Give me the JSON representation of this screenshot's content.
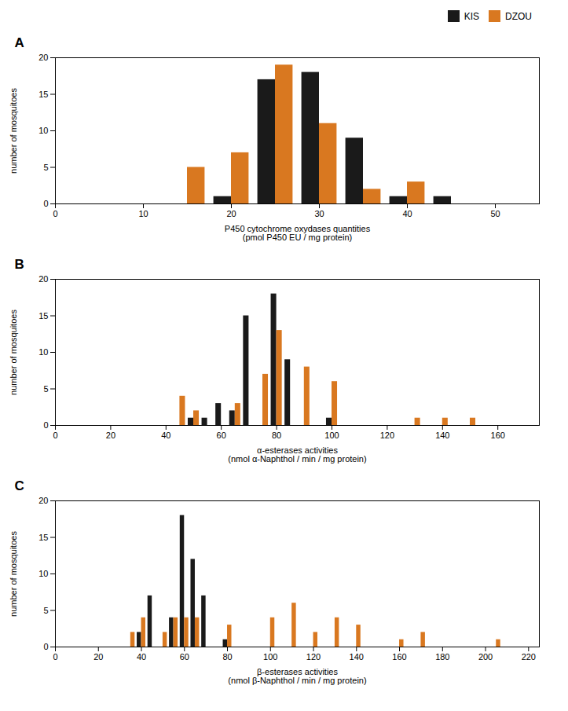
{
  "chart_data": [
    {
      "type": "bar",
      "title": "A",
      "x": [
        15,
        20,
        25,
        30,
        35,
        40,
        45
      ],
      "series": [
        {
          "name": "KIS",
          "color": "#1a1a1a",
          "values": [
            0,
            1,
            17,
            18,
            9,
            1,
            1
          ]
        },
        {
          "name": "DZOU",
          "color": "#d97820",
          "values": [
            5,
            7,
            19,
            11,
            2,
            3,
            0
          ]
        }
      ],
      "xlabel": "P450 cytochrome oxydases quantities\n(pmol P450 EU / mg protein)",
      "ylabel": "number of mosquitoes",
      "xlim": [
        0,
        55
      ],
      "ylim": [
        0,
        20
      ],
      "xticks": [
        0,
        10,
        20,
        30,
        40,
        50
      ],
      "yticks": [
        0,
        5,
        10,
        15,
        20
      ],
      "grid": false,
      "legend": "upper right"
    },
    {
      "type": "bar",
      "title": "B",
      "x": [
        40,
        45,
        50,
        55,
        60,
        65,
        70,
        75,
        80,
        85,
        90,
        95,
        100,
        105,
        110,
        115,
        120,
        125,
        130,
        135,
        140,
        145,
        150,
        155,
        160
      ],
      "series": [
        {
          "name": "KIS",
          "color": "#1a1a1a",
          "values": [
            0,
            0,
            1,
            1,
            3,
            2,
            15,
            0,
            18,
            9,
            0,
            0,
            1,
            0,
            0,
            0,
            0,
            0,
            0,
            0,
            0,
            0,
            0,
            0,
            0
          ]
        },
        {
          "name": "DZOU",
          "color": "#d97820",
          "values": [
            0,
            4,
            2,
            0,
            0,
            3,
            0,
            7,
            13,
            0,
            8,
            0,
            6,
            0,
            0,
            0,
            0,
            0,
            1,
            0,
            1,
            0,
            1,
            0,
            0
          ]
        }
      ],
      "xlabel": "α-esterases activities\n(nmol α-Naphthol / min / mg protein)",
      "ylabel": "number of mosquitoes",
      "xlim": [
        0,
        175
      ],
      "ylim": [
        0,
        20
      ],
      "xticks": [
        0,
        20,
        40,
        60,
        80,
        100,
        120,
        140,
        160
      ],
      "yticks": [
        0,
        5,
        10,
        15,
        20
      ],
      "grid": false
    },
    {
      "type": "bar",
      "title": "C",
      "x": [
        30,
        35,
        40,
        45,
        50,
        55,
        60,
        65,
        70,
        75,
        80,
        85,
        90,
        95,
        100,
        105,
        110,
        115,
        120,
        125,
        130,
        135,
        140,
        145,
        150,
        155,
        160,
        165,
        170,
        175,
        180,
        185,
        190,
        195,
        200,
        205,
        210,
        215,
        220
      ],
      "series": [
        {
          "name": "KIS",
          "color": "#1a1a1a",
          "values": [
            0,
            0,
            2,
            7,
            0,
            4,
            18,
            12,
            7,
            0,
            1,
            0,
            0,
            0,
            0,
            0,
            0,
            0,
            0,
            0,
            0,
            0,
            0,
            0,
            0,
            0,
            0,
            0,
            0,
            0,
            0,
            0,
            0,
            0,
            0,
            0,
            0,
            0,
            0
          ]
        },
        {
          "name": "DZOU",
          "color": "#d97820",
          "values": [
            0,
            2,
            4,
            0,
            2,
            4,
            4,
            4,
            0,
            0,
            3,
            0,
            0,
            0,
            4,
            0,
            6,
            0,
            2,
            0,
            4,
            0,
            3,
            0,
            0,
            0,
            1,
            0,
            2,
            0,
            0,
            0,
            0,
            0,
            0,
            1,
            0,
            0,
            0
          ]
        }
      ],
      "xlabel": "β-esterases activities\n(nmol β-Naphthol / min / mg protein)",
      "ylabel": "number of mosquitoes",
      "xlim": [
        0,
        225
      ],
      "ylim": [
        0,
        20
      ],
      "xticks": [
        0,
        20,
        40,
        60,
        80,
        100,
        120,
        140,
        160,
        180,
        200,
        220
      ],
      "yticks": [
        0,
        5,
        10,
        15,
        20
      ],
      "grid": false
    }
  ]
}
